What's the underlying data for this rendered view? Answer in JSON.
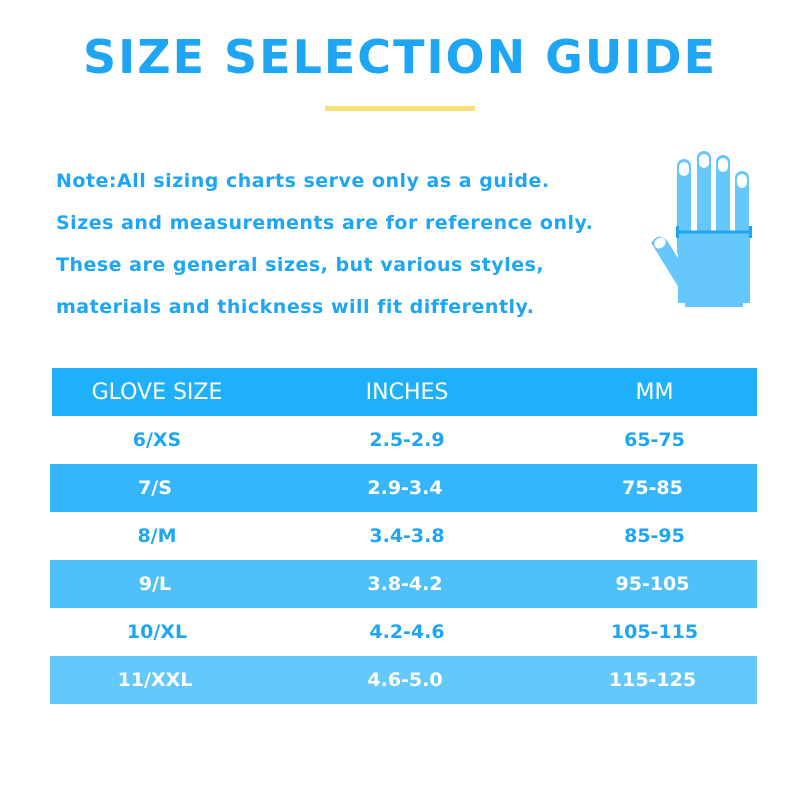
{
  "title": "SIZE SELECTION GUIDE",
  "note_lines": [
    "Note:All sizing charts serve only as a guide.",
    "Sizes and measurements are for reference only.",
    "These are general sizes, but various styles,",
    "materials and thickness will fit differently."
  ],
  "icon": "hand-measurement-icon",
  "colors": {
    "accent": "#1ea6f5",
    "header": "#1fb0fb",
    "underline": "#f8e37a",
    "hand": "#66c7fb"
  },
  "table": {
    "headers": [
      "GLOVE SIZE",
      "INCHES",
      "MM"
    ],
    "rows": [
      [
        "6/XS",
        "2.5-2.9",
        "65-75"
      ],
      [
        "7/S",
        "2.9-3.4",
        "75-85"
      ],
      [
        "8/M",
        "3.4-3.8",
        "85-95"
      ],
      [
        "9/L",
        "3.8-4.2",
        "95-105"
      ],
      [
        "10/XL",
        "4.2-4.6",
        "105-115"
      ],
      [
        "11/XXL",
        "4.6-5.0",
        "115-125"
      ]
    ]
  }
}
